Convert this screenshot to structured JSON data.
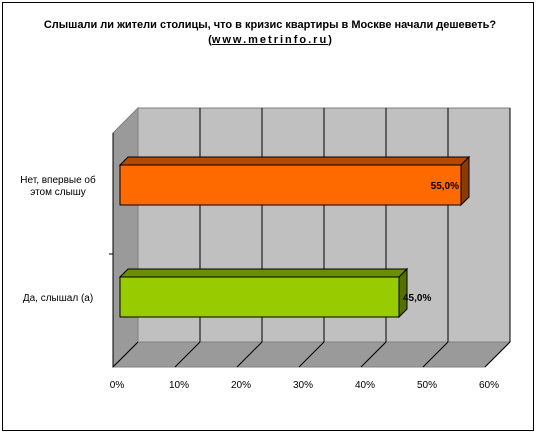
{
  "chart_data": {
    "type": "bar",
    "orientation": "horizontal",
    "three_d": true,
    "title": "Слышали ли жители столицы, что в кризис квартиры в Москве начали дешеветь?",
    "subtitle_open": "(",
    "subtitle_url": "www.metrinfo.ru",
    "subtitle_close": ")",
    "categories": [
      "Нет, впервые об этом слышу",
      "Да, слышал (а)"
    ],
    "values": [
      55.0,
      45.0
    ],
    "value_labels": [
      "55,0%",
      "45,0%"
    ],
    "colors": [
      "#FF6A00",
      "#99CC00"
    ],
    "xlim": [
      0,
      60
    ],
    "ticks": [
      "0%",
      "10%",
      "20%",
      "30%",
      "40%",
      "50%",
      "60%"
    ],
    "grid": true,
    "legend": "none"
  }
}
